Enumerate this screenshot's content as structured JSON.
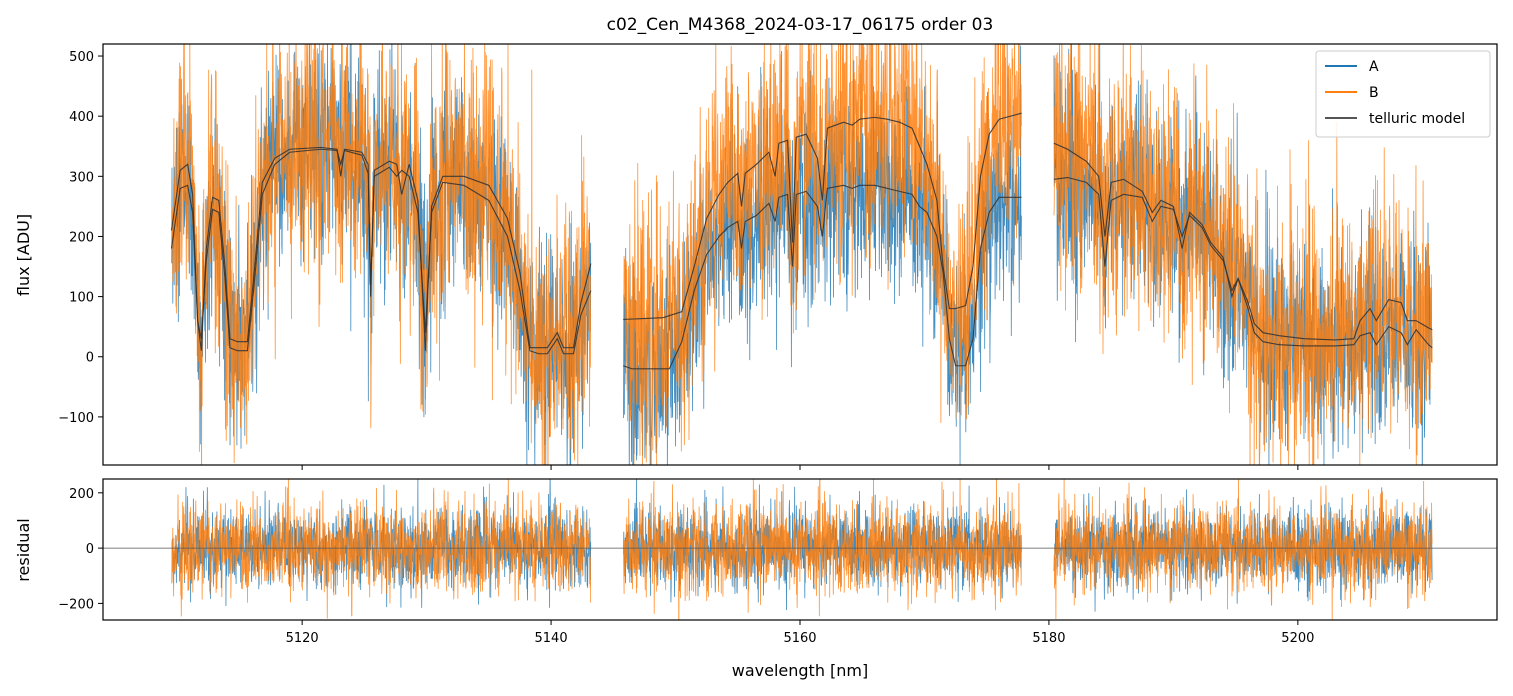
{
  "chart_data": {
    "type": "line",
    "title": "c02_Cen_M4368_2024-03-17_06175  order 03",
    "xlabel": "wavelength [nm]",
    "xlim": [
      5104,
      5216
    ],
    "xticks": [
      5120,
      5140,
      5160,
      5180,
      5200
    ],
    "segments": [
      [
        5109.5,
        5143.2
      ],
      [
        5145.8,
        5177.8
      ],
      [
        5180.4,
        5210.8
      ]
    ],
    "colors": {
      "A": "#1f77b4",
      "B": "#ff7f0e",
      "model": "#333333",
      "zero": "#555555"
    },
    "top_panel": {
      "ylabel": "flux [ADU]",
      "ylim": [
        -180,
        520
      ],
      "yticks": [
        -100,
        0,
        100,
        200,
        300,
        400,
        500
      ],
      "noise": {
        "A": 85,
        "B": 105
      }
    },
    "bottom_panel": {
      "ylabel": "residual",
      "ylim": [
        -260,
        250
      ],
      "yticks": [
        -200,
        0,
        200
      ],
      "zero_line": 0,
      "noise": {
        "A": 70,
        "B": 80
      }
    },
    "legend": {
      "location": "upper right",
      "entries": [
        {
          "label": "A",
          "series": "A"
        },
        {
          "label": "B",
          "series": "B"
        },
        {
          "label": "telluric model",
          "series": "model"
        }
      ]
    },
    "series": [
      {
        "name": "A",
        "model_points": [
          [
            5109.5,
            180
          ],
          [
            5110.2,
            280
          ],
          [
            5110.8,
            285
          ],
          [
            5111.2,
            240
          ],
          [
            5111.6,
            60
          ],
          [
            5111.9,
            30
          ],
          [
            5112.3,
            160
          ],
          [
            5112.8,
            245
          ],
          [
            5113.3,
            240
          ],
          [
            5113.8,
            130
          ],
          [
            5114.2,
            15
          ],
          [
            5114.8,
            10
          ],
          [
            5115.6,
            10
          ],
          [
            5116.1,
            110
          ],
          [
            5116.8,
            270
          ],
          [
            5117.8,
            320
          ],
          [
            5119,
            340
          ],
          [
            5121.5,
            345
          ],
          [
            5122.8,
            343
          ],
          [
            5123.1,
            320
          ],
          [
            5123.4,
            343
          ],
          [
            5124.8,
            335
          ],
          [
            5125.3,
            305
          ],
          [
            5125.5,
            120
          ],
          [
            5125.8,
            300
          ],
          [
            5127,
            315
          ],
          [
            5127.6,
            300
          ],
          [
            5128,
            310
          ],
          [
            5128.6,
            300
          ],
          [
            5129.3,
            240
          ],
          [
            5129.9,
            40
          ],
          [
            5130.4,
            240
          ],
          [
            5131.3,
            290
          ],
          [
            5133,
            285
          ],
          [
            5135,
            260
          ],
          [
            5136.5,
            200
          ],
          [
            5137.5,
            110
          ],
          [
            5138.3,
            10
          ],
          [
            5139,
            5
          ],
          [
            5139.7,
            5
          ],
          [
            5140.5,
            30
          ],
          [
            5141,
            5
          ],
          [
            5141.8,
            5
          ],
          [
            5142.4,
            70
          ],
          [
            5143.2,
            110
          ],
          [
            5145.8,
            -15
          ],
          [
            5146.5,
            -20
          ],
          [
            5149.5,
            -20
          ],
          [
            5150.5,
            25
          ],
          [
            5151.5,
            110
          ],
          [
            5152.5,
            170
          ],
          [
            5153.5,
            200
          ],
          [
            5154.2,
            215
          ],
          [
            5155,
            225
          ],
          [
            5155.3,
            180
          ],
          [
            5155.6,
            225
          ],
          [
            5156.5,
            235
          ],
          [
            5157.5,
            255
          ],
          [
            5158,
            225
          ],
          [
            5158.3,
            265
          ],
          [
            5159,
            270
          ],
          [
            5159.4,
            150
          ],
          [
            5159.7,
            270
          ],
          [
            5160.5,
            275
          ],
          [
            5161.4,
            250
          ],
          [
            5161.8,
            200
          ],
          [
            5162.2,
            280
          ],
          [
            5163.5,
            285
          ],
          [
            5164.2,
            280
          ],
          [
            5164.8,
            285
          ],
          [
            5166,
            285
          ],
          [
            5167,
            280
          ],
          [
            5168,
            275
          ],
          [
            5169,
            270
          ],
          [
            5169.6,
            250
          ],
          [
            5170.2,
            240
          ],
          [
            5171,
            200
          ],
          [
            5171.5,
            140
          ],
          [
            5172,
            30
          ],
          [
            5172.5,
            -15
          ],
          [
            5173.3,
            -15
          ],
          [
            5173.9,
            30
          ],
          [
            5174.5,
            180
          ],
          [
            5175.2,
            240
          ],
          [
            5176,
            265
          ],
          [
            5177.8,
            265
          ],
          [
            5180.4,
            295
          ],
          [
            5181.5,
            298
          ],
          [
            5183,
            290
          ],
          [
            5184,
            270
          ],
          [
            5184.5,
            150
          ],
          [
            5185,
            260
          ],
          [
            5186,
            270
          ],
          [
            5187.5,
            265
          ],
          [
            5188.3,
            225
          ],
          [
            5189,
            250
          ],
          [
            5190,
            245
          ],
          [
            5190.7,
            200
          ],
          [
            5191.3,
            235
          ],
          [
            5192.3,
            215
          ],
          [
            5193,
            185
          ],
          [
            5194,
            160
          ],
          [
            5194.7,
            110
          ],
          [
            5195.2,
            130
          ],
          [
            5196,
            80
          ],
          [
            5196.5,
            40
          ],
          [
            5197.2,
            25
          ],
          [
            5198.5,
            20
          ],
          [
            5200.5,
            18
          ],
          [
            5203,
            18
          ],
          [
            5204.5,
            20
          ],
          [
            5205,
            35
          ],
          [
            5205.8,
            40
          ],
          [
            5206.3,
            20
          ],
          [
            5207.3,
            50
          ],
          [
            5208.3,
            40
          ],
          [
            5208.8,
            20
          ],
          [
            5209.5,
            45
          ],
          [
            5210.5,
            20
          ],
          [
            5210.8,
            15
          ]
        ]
      },
      {
        "name": "B",
        "model_points": [
          [
            5109.5,
            210
          ],
          [
            5110.2,
            310
          ],
          [
            5110.8,
            320
          ],
          [
            5111.2,
            270
          ],
          [
            5111.6,
            60
          ],
          [
            5111.9,
            10
          ],
          [
            5112.3,
            180
          ],
          [
            5112.8,
            265
          ],
          [
            5113.3,
            260
          ],
          [
            5113.8,
            150
          ],
          [
            5114.2,
            30
          ],
          [
            5114.8,
            25
          ],
          [
            5115.6,
            25
          ],
          [
            5116.1,
            130
          ],
          [
            5116.8,
            290
          ],
          [
            5117.8,
            330
          ],
          [
            5119,
            345
          ],
          [
            5121.5,
            348
          ],
          [
            5122.8,
            345
          ],
          [
            5123.1,
            300
          ],
          [
            5123.4,
            345
          ],
          [
            5124.8,
            340
          ],
          [
            5125.3,
            320
          ],
          [
            5125.5,
            100
          ],
          [
            5125.8,
            310
          ],
          [
            5127,
            325
          ],
          [
            5127.6,
            320
          ],
          [
            5128,
            270
          ],
          [
            5128.6,
            320
          ],
          [
            5129.3,
            260
          ],
          [
            5129.9,
            10
          ],
          [
            5130.4,
            250
          ],
          [
            5131.3,
            300
          ],
          [
            5133,
            300
          ],
          [
            5135,
            285
          ],
          [
            5136.5,
            230
          ],
          [
            5137.5,
            140
          ],
          [
            5138.3,
            15
          ],
          [
            5139,
            15
          ],
          [
            5139.7,
            15
          ],
          [
            5140.5,
            40
          ],
          [
            5141,
            15
          ],
          [
            5141.8,
            15
          ],
          [
            5142.4,
            90
          ],
          [
            5143.2,
            155
          ],
          [
            5145.8,
            62
          ],
          [
            5149,
            65
          ],
          [
            5150.5,
            75
          ],
          [
            5151.5,
            150
          ],
          [
            5152.5,
            230
          ],
          [
            5153.5,
            270
          ],
          [
            5154.2,
            290
          ],
          [
            5155,
            305
          ],
          [
            5155.3,
            250
          ],
          [
            5155.6,
            305
          ],
          [
            5156.5,
            320
          ],
          [
            5157.5,
            340
          ],
          [
            5158,
            300
          ],
          [
            5158.3,
            355
          ],
          [
            5159,
            360
          ],
          [
            5159.4,
            190
          ],
          [
            5159.7,
            365
          ],
          [
            5160.5,
            370
          ],
          [
            5161.4,
            330
          ],
          [
            5161.8,
            260
          ],
          [
            5162.2,
            380
          ],
          [
            5163.5,
            390
          ],
          [
            5164.2,
            385
          ],
          [
            5164.8,
            395
          ],
          [
            5166,
            398
          ],
          [
            5167,
            395
          ],
          [
            5168,
            390
          ],
          [
            5169,
            380
          ],
          [
            5169.6,
            350
          ],
          [
            5170.2,
            320
          ],
          [
            5171,
            260
          ],
          [
            5171.5,
            150
          ],
          [
            5172,
            80
          ],
          [
            5172.5,
            80
          ],
          [
            5173.3,
            85
          ],
          [
            5173.9,
            150
          ],
          [
            5174.5,
            300
          ],
          [
            5175.2,
            370
          ],
          [
            5176,
            395
          ],
          [
            5177.8,
            405
          ],
          [
            5180.4,
            355
          ],
          [
            5181.5,
            345
          ],
          [
            5183,
            325
          ],
          [
            5184,
            300
          ],
          [
            5184.5,
            200
          ],
          [
            5185,
            290
          ],
          [
            5186,
            295
          ],
          [
            5187.5,
            275
          ],
          [
            5188.3,
            240
          ],
          [
            5189,
            260
          ],
          [
            5190,
            250
          ],
          [
            5190.7,
            180
          ],
          [
            5191.3,
            240
          ],
          [
            5192.3,
            220
          ],
          [
            5193,
            190
          ],
          [
            5194,
            165
          ],
          [
            5194.7,
            100
          ],
          [
            5195.2,
            130
          ],
          [
            5196,
            90
          ],
          [
            5196.5,
            55
          ],
          [
            5197.2,
            40
          ],
          [
            5198.5,
            35
          ],
          [
            5200.5,
            30
          ],
          [
            5203,
            28
          ],
          [
            5204.5,
            30
          ],
          [
            5205,
            60
          ],
          [
            5205.8,
            80
          ],
          [
            5206.3,
            60
          ],
          [
            5207.3,
            95
          ],
          [
            5208.3,
            90
          ],
          [
            5208.8,
            60
          ],
          [
            5209.5,
            60
          ],
          [
            5210.5,
            48
          ],
          [
            5210.8,
            45
          ]
        ]
      }
    ]
  }
}
